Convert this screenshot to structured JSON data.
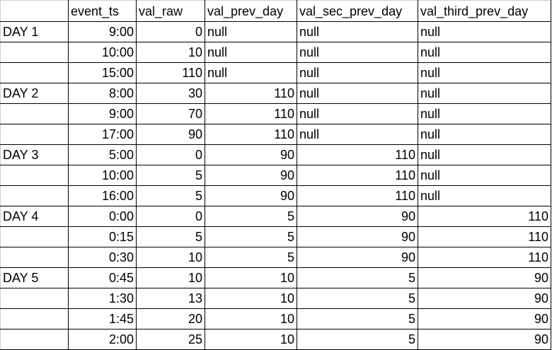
{
  "columns": [
    "",
    "event_ts",
    "val_raw",
    "val_prev_day",
    "val_sec_prev_day",
    "val_third_prev_day"
  ],
  "rows": [
    [
      "DAY 1",
      "9:00",
      "0",
      "null",
      "null",
      "null"
    ],
    [
      "",
      "10:00",
      "10",
      "null",
      "null",
      "null"
    ],
    [
      "",
      "15:00",
      "110",
      "null",
      "null",
      "null"
    ],
    [
      "DAY 2",
      "8:00",
      "30",
      "110",
      "null",
      "null"
    ],
    [
      "",
      "9:00",
      "70",
      "110",
      "null",
      "null"
    ],
    [
      "",
      "17:00",
      "90",
      "110",
      "null",
      "null"
    ],
    [
      "DAY 3",
      "5:00",
      "0",
      "90",
      "110",
      "null"
    ],
    [
      "",
      "10:00",
      "5",
      "90",
      "110",
      "null"
    ],
    [
      "",
      "16:00",
      "5",
      "90",
      "110",
      "null"
    ],
    [
      "DAY 4",
      "0:00",
      "0",
      "5",
      "90",
      "110"
    ],
    [
      "",
      "0:15",
      "5",
      "5",
      "90",
      "110"
    ],
    [
      "",
      "0:30",
      "10",
      "5",
      "90",
      "110"
    ],
    [
      "DAY 5",
      "0:45",
      "10",
      "10",
      "5",
      "90"
    ],
    [
      "",
      "1:30",
      "13",
      "10",
      "5",
      "90"
    ],
    [
      "",
      "1:45",
      "20",
      "10",
      "5",
      "90"
    ],
    [
      "",
      "2:00",
      "25",
      "10",
      "5",
      "90"
    ]
  ]
}
